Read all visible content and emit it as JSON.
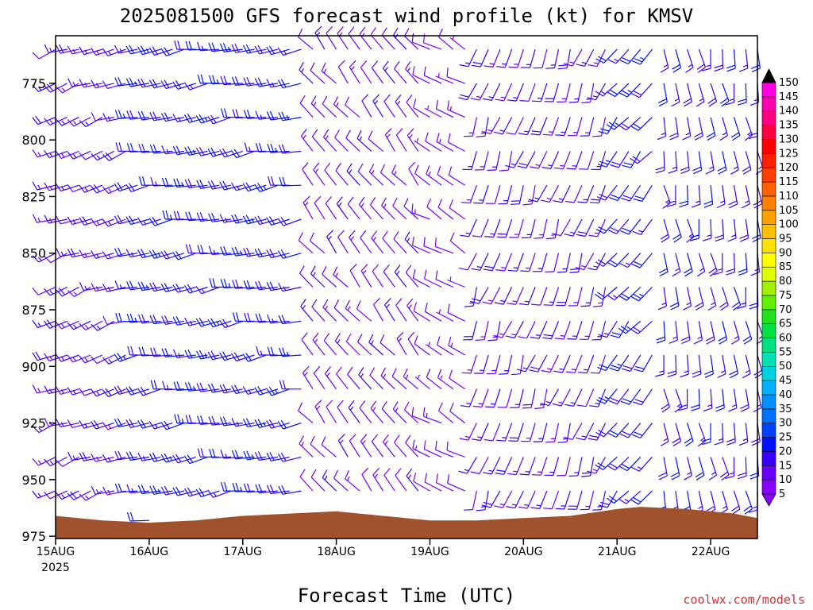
{
  "chart_data": {
    "type": "wind-barb-profile",
    "title": "2025081500 GFS forecast wind profile (kt) for KMSV",
    "xlabel": "Forecast Time (UTC)",
    "credit": "coolwx.com/models",
    "yaxis": {
      "reversed": true,
      "range": [
        754,
        976
      ],
      "ticks": [
        775,
        800,
        825,
        850,
        875,
        900,
        925,
        950,
        975
      ]
    },
    "xaxis": {
      "range": [
        0,
        180
      ],
      "ticks": [
        {
          "x": 0,
          "label": "15AUG",
          "sub": "2025"
        },
        {
          "x": 24,
          "label": "16AUG",
          "sub": ""
        },
        {
          "x": 48,
          "label": "17AUG",
          "sub": ""
        },
        {
          "x": 72,
          "label": "18AUG",
          "sub": ""
        },
        {
          "x": 96,
          "label": "19AUG",
          "sub": ""
        },
        {
          "x": 120,
          "label": "20AUG",
          "sub": ""
        },
        {
          "x": 144,
          "label": "21AUG",
          "sub": ""
        },
        {
          "x": 168,
          "label": "22AUG",
          "sub": ""
        }
      ]
    },
    "barb_levels": [
      760,
      775,
      790,
      805,
      820,
      835,
      850,
      865,
      880,
      895,
      910,
      925,
      940,
      955,
      968
    ],
    "barb_times_step_h": 3,
    "wind_regimes": [
      {
        "from": 0,
        "to": 21,
        "dir": 250,
        "speed": 15
      },
      {
        "from": 21,
        "to": 66,
        "dir": 260,
        "speed": 20
      },
      {
        "from": 66,
        "to": 96,
        "dir": 320,
        "speed": 12
      },
      {
        "from": 96,
        "to": 108,
        "dir": 300,
        "speed": 10
      },
      {
        "from": 108,
        "to": 144,
        "dir": 200,
        "speed": 15
      },
      {
        "from": 144,
        "to": 156,
        "dir": 220,
        "speed": 20
      },
      {
        "from": 156,
        "to": 181,
        "dir": 170,
        "speed": 18
      }
    ],
    "terrain_pressure": [
      {
        "t": 0,
        "p": 966
      },
      {
        "t": 12,
        "p": 968
      },
      {
        "t": 24,
        "p": 969
      },
      {
        "t": 36,
        "p": 968
      },
      {
        "t": 48,
        "p": 966
      },
      {
        "t": 60,
        "p": 965
      },
      {
        "t": 72,
        "p": 964
      },
      {
        "t": 84,
        "p": 966
      },
      {
        "t": 96,
        "p": 968
      },
      {
        "t": 108,
        "p": 968
      },
      {
        "t": 120,
        "p": 967
      },
      {
        "t": 132,
        "p": 966
      },
      {
        "t": 144,
        "p": 963
      },
      {
        "t": 150,
        "p": 962
      },
      {
        "t": 162,
        "p": 963
      },
      {
        "t": 174,
        "p": 965
      },
      {
        "t": 180,
        "p": 967
      }
    ],
    "terrain_color": "#a0522d",
    "colorbar": {
      "levels": [
        5,
        10,
        15,
        20,
        25,
        30,
        35,
        40,
        45,
        50,
        55,
        60,
        65,
        70,
        75,
        80,
        85,
        90,
        95,
        100,
        105,
        110,
        115,
        120,
        125,
        130,
        135,
        140,
        145,
        150
      ],
      "labels": [
        "5",
        "10",
        "15",
        "20",
        "25",
        "30",
        "35",
        "40",
        "45",
        "50",
        "55",
        "60",
        "65",
        "70",
        "75",
        "80",
        "85",
        "90",
        "95",
        "100",
        "105",
        "110",
        "115",
        "120",
        "125",
        "130",
        "135",
        "140",
        "145",
        "150"
      ],
      "colors": [
        "#8a00ff",
        "#6a00ff",
        "#3a00ff",
        "#0010ff",
        "#0040ff",
        "#0070ff",
        "#0090ff",
        "#00b0ff",
        "#00d0e0",
        "#00e0b0",
        "#00e080",
        "#00e040",
        "#20e020",
        "#60f000",
        "#a0f000",
        "#e0ff00",
        "#ffff00",
        "#ffe000",
        "#ffc000",
        "#ffa000",
        "#ff8000",
        "#ff6000",
        "#ff4000",
        "#ff2000",
        "#ff0000",
        "#ff0040",
        "#ff0080",
        "#ff00b0",
        "#ff00e0"
      ]
    }
  }
}
